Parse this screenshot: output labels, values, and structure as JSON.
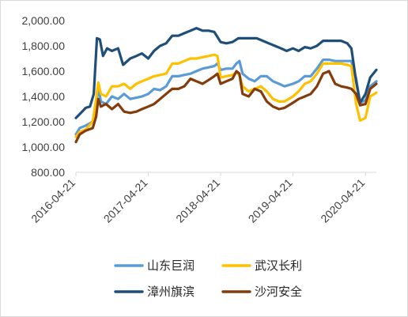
{
  "chart_data": {
    "type": "line",
    "title": "",
    "xlabel": "",
    "ylabel": "",
    "ylim": [
      800,
      2000
    ],
    "y_ticks": [
      "800.00",
      "1,000.00",
      "1,200.00",
      "1,400.00",
      "1,600.00",
      "1,800.00",
      "2,000.00"
    ],
    "x_range": [
      "2016-04-21",
      "2020-06-15"
    ],
    "x_ticks": [
      "2016-04-21",
      "2017-04-21",
      "2018-04-21",
      "2019-04-21",
      "2020-04-21"
    ],
    "grid": false,
    "legend": "bottom",
    "series": [
      {
        "name": "山东巨润",
        "color": "#5b9bd5",
        "points": [
          [
            "2016-04-21",
            1100
          ],
          [
            "2016-05-10",
            1150
          ],
          [
            "2016-06-10",
            1170
          ],
          [
            "2016-07-15",
            1200
          ],
          [
            "2016-08-01",
            1320
          ],
          [
            "2016-08-12",
            1480
          ],
          [
            "2016-08-25",
            1360
          ],
          [
            "2016-09-20",
            1340
          ],
          [
            "2016-10-20",
            1400
          ],
          [
            "2016-11-20",
            1380
          ],
          [
            "2016-12-20",
            1420
          ],
          [
            "2017-01-20",
            1380
          ],
          [
            "2017-02-20",
            1390
          ],
          [
            "2017-03-20",
            1400
          ],
          [
            "2017-04-21",
            1420
          ],
          [
            "2017-05-20",
            1460
          ],
          [
            "2017-06-20",
            1450
          ],
          [
            "2017-07-20",
            1480
          ],
          [
            "2017-08-20",
            1560
          ],
          [
            "2017-09-20",
            1560
          ],
          [
            "2017-10-20",
            1570
          ],
          [
            "2017-11-20",
            1580
          ],
          [
            "2017-12-20",
            1600
          ],
          [
            "2018-01-20",
            1620
          ],
          [
            "2018-02-20",
            1630
          ],
          [
            "2018-03-20",
            1640
          ],
          [
            "2018-04-05",
            1660
          ],
          [
            "2018-04-21",
            1610
          ],
          [
            "2018-05-20",
            1620
          ],
          [
            "2018-06-20",
            1620
          ],
          [
            "2018-07-10",
            1660
          ],
          [
            "2018-07-25",
            1680
          ],
          [
            "2018-08-10",
            1580
          ],
          [
            "2018-09-10",
            1540
          ],
          [
            "2018-10-10",
            1520
          ],
          [
            "2018-11-10",
            1560
          ],
          [
            "2018-12-10",
            1560
          ],
          [
            "2019-01-10",
            1520
          ],
          [
            "2019-02-10",
            1500
          ],
          [
            "2019-03-10",
            1480
          ],
          [
            "2019-04-21",
            1500
          ],
          [
            "2019-05-20",
            1520
          ],
          [
            "2019-06-20",
            1560
          ],
          [
            "2019-07-20",
            1560
          ],
          [
            "2019-08-20",
            1620
          ],
          [
            "2019-09-20",
            1690
          ],
          [
            "2019-10-20",
            1690
          ],
          [
            "2019-11-20",
            1680
          ],
          [
            "2019-12-20",
            1680
          ],
          [
            "2020-01-20",
            1680
          ],
          [
            "2020-02-10",
            1680
          ],
          [
            "2020-03-05",
            1540
          ],
          [
            "2020-03-25",
            1350
          ],
          [
            "2020-04-21",
            1370
          ],
          [
            "2020-05-15",
            1480
          ],
          [
            "2020-06-15",
            1520
          ]
        ]
      },
      {
        "name": "武汉长利",
        "color": "#ffc000",
        "points": [
          [
            "2016-04-21",
            1080
          ],
          [
            "2016-05-10",
            1120
          ],
          [
            "2016-06-10",
            1140
          ],
          [
            "2016-07-15",
            1200
          ],
          [
            "2016-08-01",
            1380
          ],
          [
            "2016-08-12",
            1510
          ],
          [
            "2016-08-25",
            1420
          ],
          [
            "2016-09-20",
            1400
          ],
          [
            "2016-10-20",
            1480
          ],
          [
            "2016-11-20",
            1480
          ],
          [
            "2016-12-20",
            1500
          ],
          [
            "2017-01-20",
            1460
          ],
          [
            "2017-02-20",
            1500
          ],
          [
            "2017-03-20",
            1520
          ],
          [
            "2017-04-21",
            1540
          ],
          [
            "2017-05-20",
            1560
          ],
          [
            "2017-06-20",
            1570
          ],
          [
            "2017-07-20",
            1580
          ],
          [
            "2017-08-20",
            1660
          ],
          [
            "2017-09-20",
            1660
          ],
          [
            "2017-10-20",
            1680
          ],
          [
            "2017-11-20",
            1700
          ],
          [
            "2017-12-20",
            1700
          ],
          [
            "2018-01-20",
            1710
          ],
          [
            "2018-02-20",
            1720
          ],
          [
            "2018-03-20",
            1730
          ],
          [
            "2018-04-05",
            1720
          ],
          [
            "2018-04-21",
            1550
          ],
          [
            "2018-05-20",
            1560
          ],
          [
            "2018-06-20",
            1570
          ],
          [
            "2018-07-10",
            1590
          ],
          [
            "2018-07-25",
            1570
          ],
          [
            "2018-08-10",
            1480
          ],
          [
            "2018-09-10",
            1440
          ],
          [
            "2018-10-10",
            1460
          ],
          [
            "2018-11-10",
            1480
          ],
          [
            "2018-12-10",
            1440
          ],
          [
            "2019-01-10",
            1380
          ],
          [
            "2019-02-10",
            1360
          ],
          [
            "2019-03-10",
            1360
          ],
          [
            "2019-04-21",
            1400
          ],
          [
            "2019-05-20",
            1440
          ],
          [
            "2019-06-20",
            1500
          ],
          [
            "2019-07-20",
            1520
          ],
          [
            "2019-08-20",
            1580
          ],
          [
            "2019-09-20",
            1660
          ],
          [
            "2019-10-20",
            1660
          ],
          [
            "2019-11-20",
            1660
          ],
          [
            "2019-12-20",
            1660
          ],
          [
            "2020-01-20",
            1650
          ],
          [
            "2020-02-10",
            1640
          ],
          [
            "2020-03-05",
            1340
          ],
          [
            "2020-03-25",
            1210
          ],
          [
            "2020-04-21",
            1230
          ],
          [
            "2020-05-15",
            1400
          ],
          [
            "2020-06-15",
            1430
          ]
        ]
      },
      {
        "name": "漳州旗滨",
        "color": "#1f4e79",
        "points": [
          [
            "2016-04-21",
            1230
          ],
          [
            "2016-05-10",
            1260
          ],
          [
            "2016-06-10",
            1310
          ],
          [
            "2016-07-01",
            1320
          ],
          [
            "2016-07-20",
            1420
          ],
          [
            "2016-08-05",
            1860
          ],
          [
            "2016-08-20",
            1850
          ],
          [
            "2016-09-05",
            1720
          ],
          [
            "2016-09-25",
            1780
          ],
          [
            "2016-10-20",
            1760
          ],
          [
            "2016-11-20",
            1780
          ],
          [
            "2016-12-15",
            1650
          ],
          [
            "2017-01-20",
            1700
          ],
          [
            "2017-02-20",
            1720
          ],
          [
            "2017-03-20",
            1740
          ],
          [
            "2017-04-21",
            1700
          ],
          [
            "2017-05-20",
            1760
          ],
          [
            "2017-06-20",
            1800
          ],
          [
            "2017-07-20",
            1820
          ],
          [
            "2017-08-20",
            1880
          ],
          [
            "2017-09-20",
            1880
          ],
          [
            "2017-10-20",
            1900
          ],
          [
            "2017-11-20",
            1920
          ],
          [
            "2017-12-20",
            1940
          ],
          [
            "2018-01-20",
            1920
          ],
          [
            "2018-02-20",
            1920
          ],
          [
            "2018-03-20",
            1910
          ],
          [
            "2018-04-21",
            1830
          ],
          [
            "2018-05-20",
            1820
          ],
          [
            "2018-06-20",
            1830
          ],
          [
            "2018-07-20",
            1860
          ],
          [
            "2018-08-20",
            1860
          ],
          [
            "2018-09-20",
            1860
          ],
          [
            "2018-10-20",
            1860
          ],
          [
            "2018-11-20",
            1840
          ],
          [
            "2018-12-20",
            1820
          ],
          [
            "2019-01-20",
            1800
          ],
          [
            "2019-02-20",
            1780
          ],
          [
            "2019-03-20",
            1760
          ],
          [
            "2019-04-21",
            1780
          ],
          [
            "2019-05-20",
            1760
          ],
          [
            "2019-06-20",
            1790
          ],
          [
            "2019-07-20",
            1780
          ],
          [
            "2019-08-20",
            1800
          ],
          [
            "2019-09-20",
            1840
          ],
          [
            "2019-10-20",
            1840
          ],
          [
            "2019-11-20",
            1840
          ],
          [
            "2019-12-20",
            1840
          ],
          [
            "2020-01-20",
            1820
          ],
          [
            "2020-02-10",
            1780
          ],
          [
            "2020-03-05",
            1520
          ],
          [
            "2020-03-25",
            1350
          ],
          [
            "2020-04-21",
            1420
          ],
          [
            "2020-05-15",
            1550
          ],
          [
            "2020-06-15",
            1610
          ]
        ]
      },
      {
        "name": "沙河安全",
        "color": "#843c0c",
        "points": [
          [
            "2016-04-21",
            1040
          ],
          [
            "2016-05-10",
            1100
          ],
          [
            "2016-06-10",
            1130
          ],
          [
            "2016-07-15",
            1150
          ],
          [
            "2016-08-01",
            1240
          ],
          [
            "2016-08-12",
            1380
          ],
          [
            "2016-08-25",
            1320
          ],
          [
            "2016-09-20",
            1340
          ],
          [
            "2016-10-20",
            1300
          ],
          [
            "2016-11-20",
            1340
          ],
          [
            "2016-12-20",
            1280
          ],
          [
            "2017-01-20",
            1270
          ],
          [
            "2017-02-20",
            1280
          ],
          [
            "2017-03-20",
            1300
          ],
          [
            "2017-04-21",
            1320
          ],
          [
            "2017-05-20",
            1340
          ],
          [
            "2017-06-20",
            1380
          ],
          [
            "2017-07-20",
            1420
          ],
          [
            "2017-08-20",
            1460
          ],
          [
            "2017-09-20",
            1460
          ],
          [
            "2017-10-20",
            1480
          ],
          [
            "2017-11-20",
            1540
          ],
          [
            "2017-12-20",
            1520
          ],
          [
            "2018-01-20",
            1500
          ],
          [
            "2018-02-20",
            1530
          ],
          [
            "2018-03-20",
            1560
          ],
          [
            "2018-04-05",
            1580
          ],
          [
            "2018-04-21",
            1500
          ],
          [
            "2018-05-20",
            1520
          ],
          [
            "2018-06-20",
            1540
          ],
          [
            "2018-07-10",
            1600
          ],
          [
            "2018-07-25",
            1580
          ],
          [
            "2018-08-10",
            1420
          ],
          [
            "2018-09-10",
            1400
          ],
          [
            "2018-10-10",
            1460
          ],
          [
            "2018-11-10",
            1440
          ],
          [
            "2018-12-10",
            1360
          ],
          [
            "2019-01-10",
            1320
          ],
          [
            "2019-02-10",
            1300
          ],
          [
            "2019-03-10",
            1310
          ],
          [
            "2019-04-21",
            1350
          ],
          [
            "2019-05-20",
            1380
          ],
          [
            "2019-06-20",
            1400
          ],
          [
            "2019-07-20",
            1420
          ],
          [
            "2019-08-20",
            1480
          ],
          [
            "2019-09-20",
            1580
          ],
          [
            "2019-10-20",
            1600
          ],
          [
            "2019-11-20",
            1500
          ],
          [
            "2019-12-20",
            1480
          ],
          [
            "2020-01-20",
            1470
          ],
          [
            "2020-02-10",
            1460
          ],
          [
            "2020-03-05",
            1420
          ],
          [
            "2020-03-25",
            1330
          ],
          [
            "2020-04-21",
            1340
          ],
          [
            "2020-05-15",
            1460
          ],
          [
            "2020-06-15",
            1500
          ]
        ]
      }
    ]
  }
}
